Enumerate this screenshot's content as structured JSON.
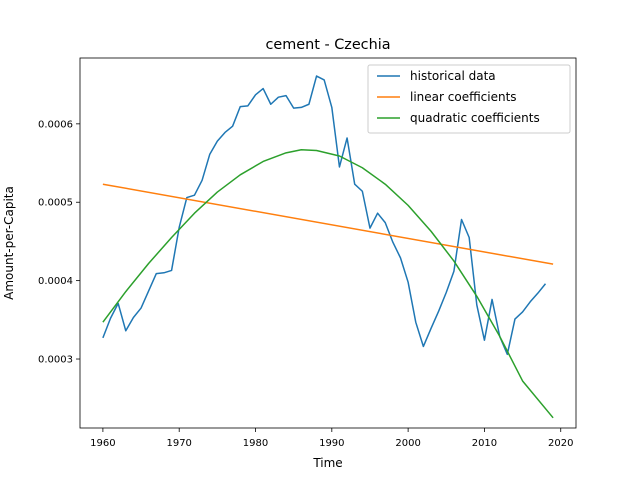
{
  "chart_data": {
    "type": "line",
    "title": "cement - Czechia",
    "xlabel": "Time",
    "ylabel": "Amount-per-Capita",
    "xlim": [
      1957,
      2022
    ],
    "ylim": [
      0.000212,
      0.000684
    ],
    "xticks": [
      1960,
      1970,
      1980,
      1990,
      2000,
      2010,
      2020
    ],
    "yticks": [
      0.0003,
      0.0004,
      0.0005,
      0.0006
    ],
    "ytick_labels": [
      "0.0003",
      "0.0004",
      "0.0005",
      "0.0006"
    ],
    "grid": false,
    "legend_position": "top-right",
    "series": [
      {
        "name": "historical data",
        "color": "#1f77b4",
        "x": [
          1960,
          1961,
          1962,
          1963,
          1964,
          1965,
          1966,
          1967,
          1968,
          1969,
          1970,
          1971,
          1972,
          1973,
          1974,
          1975,
          1976,
          1977,
          1978,
          1979,
          1980,
          1981,
          1982,
          1983,
          1984,
          1985,
          1986,
          1987,
          1988,
          1989,
          1990,
          1991,
          1992,
          1993,
          1994,
          1995,
          1996,
          1997,
          1998,
          1999,
          2000,
          2001,
          2002,
          2003,
          2004,
          2005,
          2006,
          2007,
          2008,
          2009,
          2010,
          2011,
          2012,
          2013,
          2014,
          2015,
          2016,
          2017,
          2018
        ],
        "y": [
          0.000327,
          0.000352,
          0.000371,
          0.000336,
          0.000353,
          0.000365,
          0.000387,
          0.000409,
          0.00041,
          0.000413,
          0.000468,
          0.000506,
          0.000509,
          0.000528,
          0.000561,
          0.000578,
          0.000589,
          0.000597,
          0.000622,
          0.000623,
          0.000637,
          0.000645,
          0.000625,
          0.000634,
          0.000636,
          0.00062,
          0.000621,
          0.000625,
          0.000661,
          0.000656,
          0.000621,
          0.000545,
          0.000582,
          0.000523,
          0.000514,
          0.000467,
          0.000486,
          0.000474,
          0.000449,
          0.000429,
          0.000398,
          0.000347,
          0.000316,
          0.000339,
          0.000361,
          0.000385,
          0.000412,
          0.000478,
          0.000455,
          0.000369,
          0.000324,
          0.000376,
          0.000329,
          0.000306,
          0.000351,
          0.00036,
          0.000373,
          0.000384,
          0.000396
        ]
      },
      {
        "name": "linear coefficients",
        "color": "#ff7f0e",
        "x": [
          1960,
          2019
        ],
        "y": [
          0.000523,
          0.000421
        ]
      },
      {
        "name": "quadratic coefficients",
        "color": "#2ca02c",
        "x": [
          1960,
          1963,
          1966,
          1969,
          1972,
          1975,
          1978,
          1981,
          1984,
          1986,
          1988,
          1991,
          1994,
          1997,
          2000,
          2003,
          2006,
          2009,
          2012,
          2015,
          2019
        ],
        "y": [
          0.000347,
          0.000386,
          0.000422,
          0.000455,
          0.000486,
          0.000513,
          0.000535,
          0.000552,
          0.000563,
          0.000567,
          0.000566,
          0.000559,
          0.000544,
          0.000523,
          0.000496,
          0.000463,
          0.000425,
          0.00038,
          0.000329,
          0.000272,
          0.000225
        ]
      }
    ]
  }
}
